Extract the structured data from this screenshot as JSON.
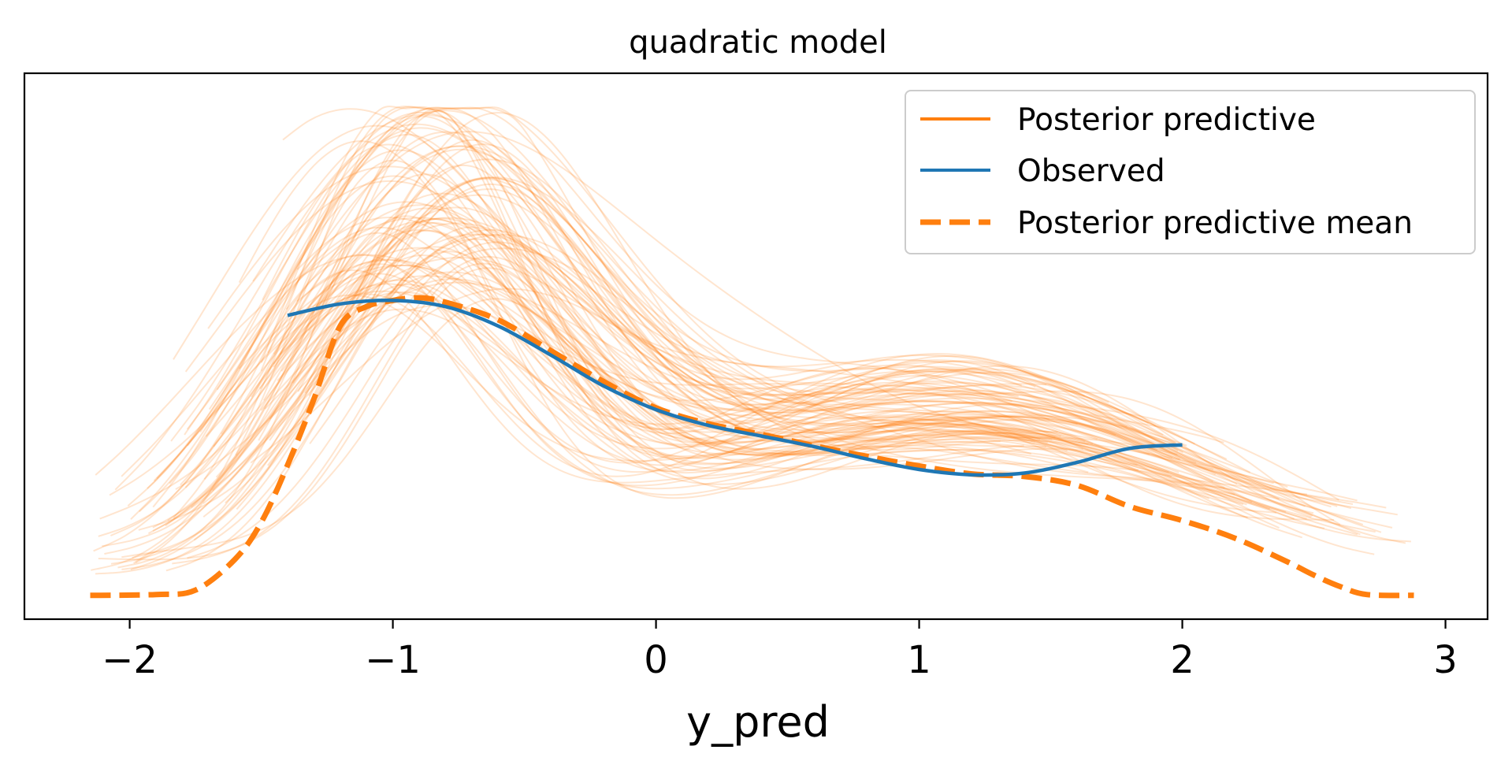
{
  "chart_data": {
    "type": "line",
    "title": "quadratic model",
    "xlabel": "y_pred",
    "ylabel": "",
    "xlim": [
      -2.4,
      3.16
    ],
    "ylim": [
      0,
      0.62
    ],
    "grid": false,
    "legend_position": "top-right",
    "colors": {
      "posterior_predictive": "#ff7f0e",
      "observed": "#1f77b4",
      "mean": "#ff7f0e"
    },
    "xticks": [
      {
        "value": -2,
        "label": "−2"
      },
      {
        "value": -1,
        "label": "−1"
      },
      {
        "value": 0,
        "label": "0"
      },
      {
        "value": 1,
        "label": "1"
      },
      {
        "value": 2,
        "label": "2"
      },
      {
        "value": 3,
        "label": "3"
      }
    ],
    "legend": [
      {
        "label": "Posterior predictive",
        "style": "solid",
        "color": "#ff7f0e"
      },
      {
        "label": "Observed",
        "style": "solid",
        "color": "#1f77b4"
      },
      {
        "label": "Posterior predictive mean",
        "style": "dashed",
        "color": "#ff7f0e"
      }
    ],
    "series": [
      {
        "name": "Observed",
        "points": [
          [
            -1.4,
            0.345
          ],
          [
            -1.2,
            0.358
          ],
          [
            -1.0,
            0.362
          ],
          [
            -0.8,
            0.355
          ],
          [
            -0.6,
            0.333
          ],
          [
            -0.4,
            0.3
          ],
          [
            -0.2,
            0.265
          ],
          [
            0.0,
            0.238
          ],
          [
            0.2,
            0.22
          ],
          [
            0.4,
            0.208
          ],
          [
            0.6,
            0.196
          ],
          [
            0.8,
            0.182
          ],
          [
            1.0,
            0.17
          ],
          [
            1.2,
            0.164
          ],
          [
            1.4,
            0.166
          ],
          [
            1.6,
            0.178
          ],
          [
            1.8,
            0.194
          ],
          [
            2.0,
            0.198
          ]
        ]
      },
      {
        "name": "Posterior predictive mean",
        "points": [
          [
            -2.15,
            0.027
          ],
          [
            -1.9,
            0.028
          ],
          [
            -1.75,
            0.033
          ],
          [
            -1.6,
            0.068
          ],
          [
            -1.5,
            0.11
          ],
          [
            -1.4,
            0.175
          ],
          [
            -1.3,
            0.25
          ],
          [
            -1.2,
            0.333
          ],
          [
            -1.1,
            0.355
          ],
          [
            -1.0,
            0.362
          ],
          [
            -0.9,
            0.365
          ],
          [
            -0.8,
            0.36
          ],
          [
            -0.6,
            0.34
          ],
          [
            -0.4,
            0.305
          ],
          [
            -0.2,
            0.27
          ],
          [
            0.0,
            0.24
          ],
          [
            0.2,
            0.222
          ],
          [
            0.4,
            0.21
          ],
          [
            0.6,
            0.197
          ],
          [
            0.8,
            0.185
          ],
          [
            1.0,
            0.174
          ],
          [
            1.2,
            0.165
          ],
          [
            1.4,
            0.162
          ],
          [
            1.6,
            0.152
          ],
          [
            1.8,
            0.128
          ],
          [
            2.0,
            0.112
          ],
          [
            2.2,
            0.092
          ],
          [
            2.4,
            0.065
          ],
          [
            2.5,
            0.05
          ],
          [
            2.6,
            0.037
          ],
          [
            2.7,
            0.028
          ],
          [
            2.88,
            0.027
          ]
        ]
      }
    ],
    "posterior_samples": {
      "count": 100,
      "alpha": 0.2,
      "description_values": {
        "x_start_range": [
          -2.15,
          -1.3
        ],
        "x_end_range": [
          1.3,
          2.9
        ],
        "peak_height_range": [
          0.3,
          0.57
        ]
      }
    }
  }
}
